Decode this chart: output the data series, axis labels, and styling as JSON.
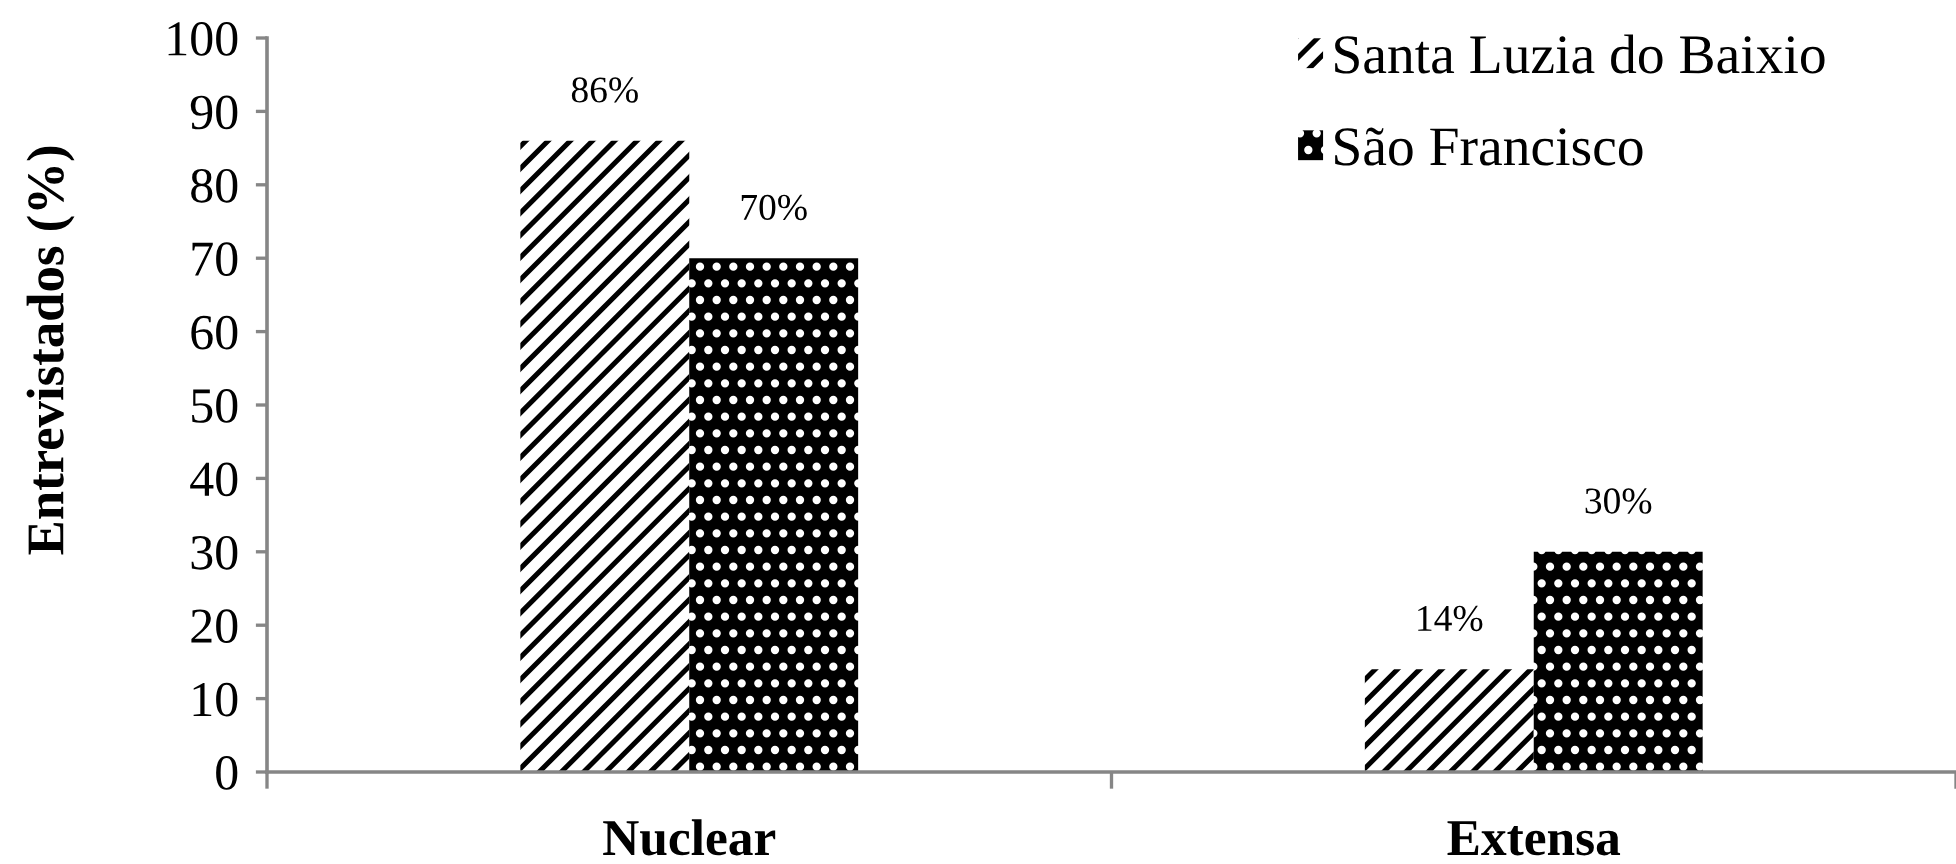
{
  "chart_data": {
    "type": "bar",
    "ylabel": "Entrevistados (%)",
    "categories": [
      "Nuclear",
      "Extensa"
    ],
    "series": [
      {
        "name": "Santa Luzia do Baixio",
        "color": "#000000",
        "values": [
          86,
          14
        ],
        "value_labels": [
          "86%",
          "14%"
        ]
      },
      {
        "name": "São Francisco",
        "color": "#000000",
        "values": [
          70,
          30
        ],
        "value_labels": [
          "70%",
          "30%"
        ]
      }
    ],
    "ylim": [
      0,
      100
    ],
    "yticks": [
      0,
      10,
      20,
      30,
      40,
      50,
      60,
      70,
      80,
      90,
      100
    ],
    "grid": false,
    "legend": "top right"
  }
}
